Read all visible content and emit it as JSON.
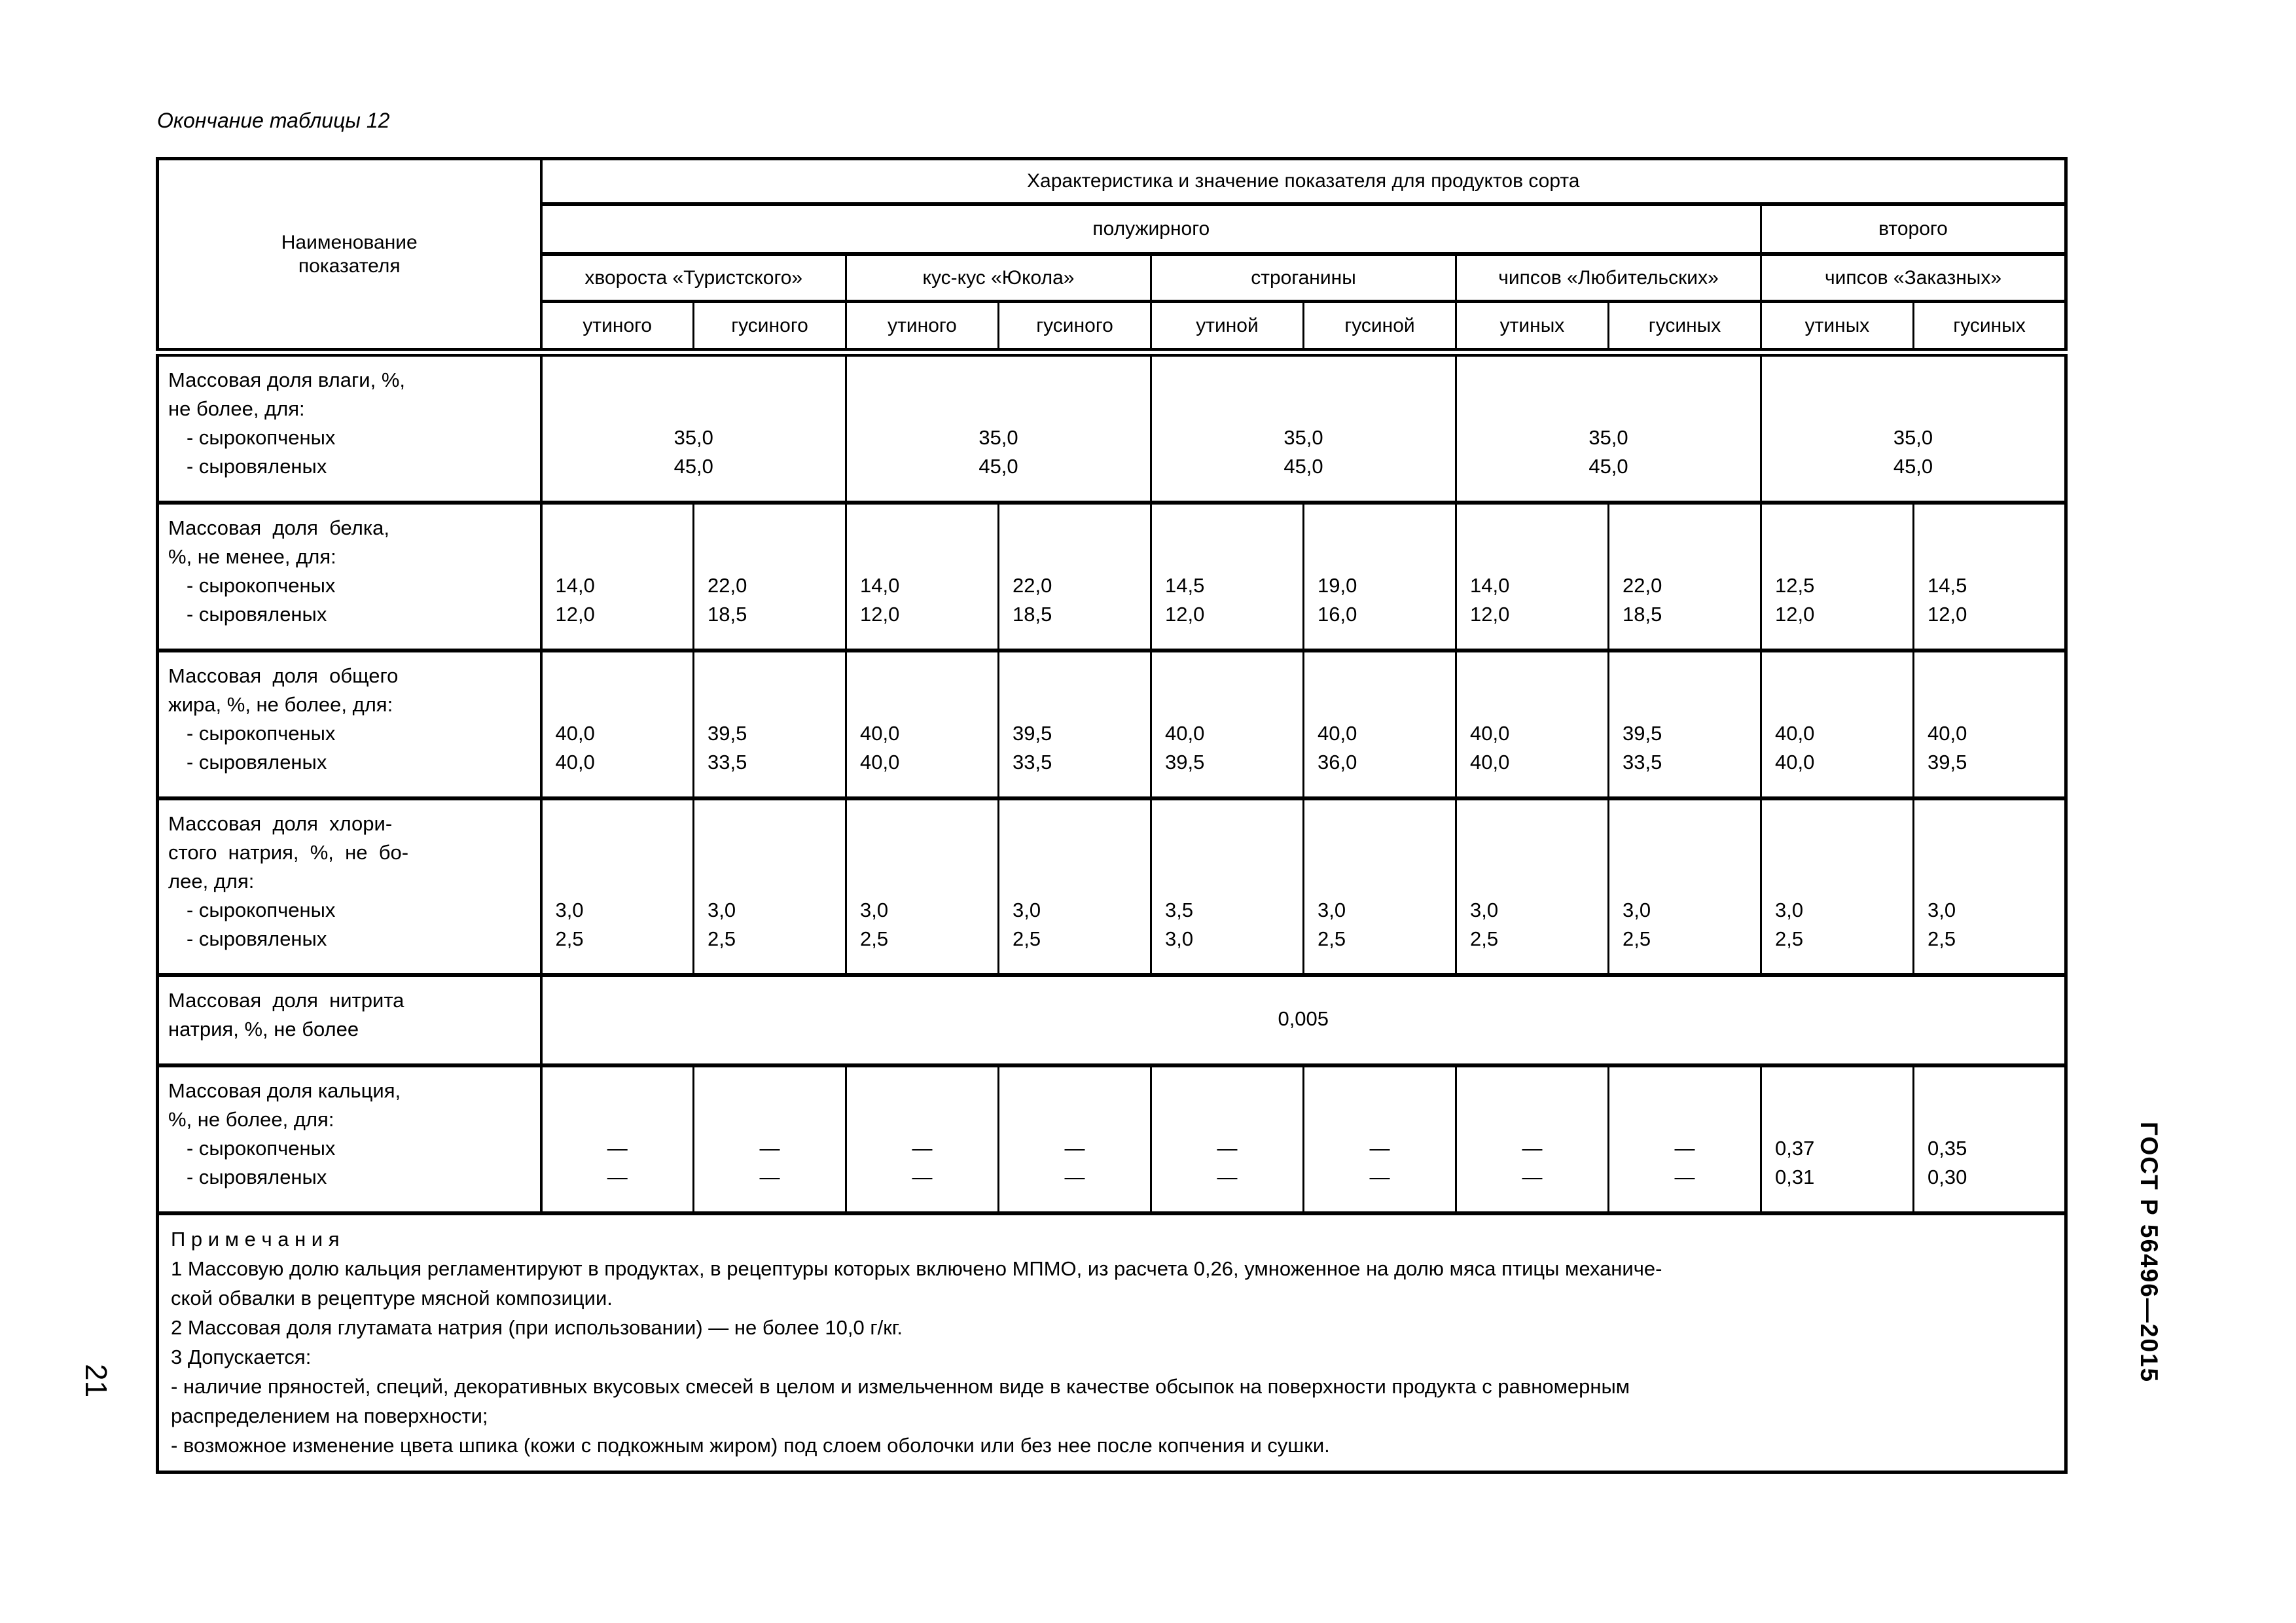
{
  "page": {
    "caption": "Окончание таблицы 12",
    "page_number": "21",
    "standard_label": "ГОСТ Р 56496—2015"
  },
  "colors": {
    "ink": "#000000",
    "paper": "#ffffff"
  },
  "table": {
    "corner_header_lines": [
      "Наименование",
      "показателя"
    ],
    "top_header": "Характеристика и значение показателя для продуктов сорта",
    "grade_headers": [
      "полужирного",
      "второго"
    ],
    "product_headers": [
      "хвороста «Туристского»",
      "кус-кус «Юкола»",
      "строганины",
      "чипсов «Любительских»",
      "чипсов «Заказных»"
    ],
    "bird_headers": [
      "утиного",
      "гусиного",
      "утиного",
      "гусиного",
      "утиной",
      "гусиной",
      "утиных",
      "гусиных",
      "утиных",
      "гусиных"
    ],
    "rows": [
      {
        "name_lines": [
          "Массовая доля влаги, %,",
          "не более, для:",
          "- сырокопченых",
          "- сыровяленых"
        ],
        "cells": [
          [
            "35,0",
            "45,0"
          ],
          [
            "35,0",
            "45,0"
          ],
          [
            "35,0",
            "45,0"
          ],
          [
            "35,0",
            "45,0"
          ],
          [
            "35,0",
            "45,0"
          ]
        ]
      },
      {
        "name_lines": [
          "Массовая  доля  белка,",
          "%, не менее, для:",
          "- сырокопченых",
          "- сыровяленых"
        ],
        "cells": [
          [
            "14,0",
            "12,0"
          ],
          [
            "22,0",
            "18,5"
          ],
          [
            "14,0",
            "12,0"
          ],
          [
            "22,0",
            "18,5"
          ],
          [
            "14,5",
            "12,0"
          ],
          [
            "19,0",
            "16,0"
          ],
          [
            "14,0",
            "12,0"
          ],
          [
            "22,0",
            "18,5"
          ],
          [
            "12,5",
            "12,0"
          ],
          [
            "14,5",
            "12,0"
          ]
        ]
      },
      {
        "name_lines": [
          "Массовая  доля  общего",
          "жира, %, не более, для:",
          "- сырокопченых",
          "- сыровяленых"
        ],
        "cells": [
          [
            "40,0",
            "40,0"
          ],
          [
            "39,5",
            "33,5"
          ],
          [
            "40,0",
            "40,0"
          ],
          [
            "39,5",
            "33,5"
          ],
          [
            "40,0",
            "39,5"
          ],
          [
            "40,0",
            "36,0"
          ],
          [
            "40,0",
            "40,0"
          ],
          [
            "39,5",
            "33,5"
          ],
          [
            "40,0",
            "40,0"
          ],
          [
            "40,0",
            "39,5"
          ]
        ]
      },
      {
        "name_lines": [
          "Массовая  доля  хлори-",
          "стого  натрия,  %,  не  бо-",
          "лее, для:",
          "- сырокопченых",
          "- сыровяленых"
        ],
        "cells": [
          [
            "3,0",
            "2,5"
          ],
          [
            "3,0",
            "2,5"
          ],
          [
            "3,0",
            "2,5"
          ],
          [
            "3,0",
            "2,5"
          ],
          [
            "3,5",
            "3,0"
          ],
          [
            "3,0",
            "2,5"
          ],
          [
            "3,0",
            "2,5"
          ],
          [
            "3,0",
            "2,5"
          ],
          [
            "3,0",
            "2,5"
          ],
          [
            "3,0",
            "2,5"
          ]
        ]
      },
      {
        "name_lines": [
          "Массовая  доля  нитрита",
          "натрия, %, не более"
        ],
        "cells": [
          [
            "0,005"
          ]
        ]
      },
      {
        "name_lines": [
          "Массовая доля кальция,",
          "%, не более, для:",
          "- сырокопченых",
          "- сыровяленых"
        ],
        "cells": [
          [
            "—",
            "—"
          ],
          [
            "—",
            "—"
          ],
          [
            "—",
            "—"
          ],
          [
            "—",
            "—"
          ],
          [
            "—",
            "—"
          ],
          [
            "—",
            "—"
          ],
          [
            "—",
            "—"
          ],
          [
            "—",
            "—"
          ],
          [
            "0,37",
            "0,31"
          ],
          [
            "0,35",
            "0,30"
          ]
        ]
      }
    ]
  },
  "notes": {
    "title": "П р и м е ч а н и я",
    "lines": [
      "1 Массовую долю кальция регламентируют в продуктах, в рецептуры которых включено МПМО, из расчета 0,26, умноженное на долю мяса птицы механиче-",
      "ской обвалки в рецептуре мясной композиции.",
      "2 Массовая доля глутамата натрия (при использовании) — не более 10,0 г/кг.",
      "3 Допускается:",
      "- наличие пряностей, специй, декоративных вкусовых смесей в целом и измельченном виде в качестве обсыпок на поверхности продукта с равномерным",
      "распределением на поверхности;",
      "- возможное изменение цвета шпика (кожи с подкожным жиром) под слоем оболочки или без нее после копчения и сушки."
    ]
  }
}
